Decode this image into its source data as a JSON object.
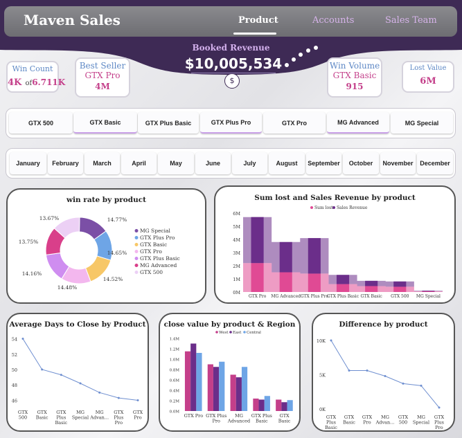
{
  "header": {
    "brand": "Maven Sales",
    "tabs": [
      {
        "label": "Product"
      },
      {
        "label": "Accounts"
      },
      {
        "label": "Sales Team"
      }
    ]
  },
  "booked_revenue": {
    "label": "Booked Revenue",
    "value": "$10,005,534",
    "icon": "dollar-icon",
    "icon_glyph": "$"
  },
  "kpis": {
    "win_count": {
      "title": "Win Count",
      "value": "4K",
      "of": "of",
      "total": "6.711K"
    },
    "best_seller": {
      "title": "Best Seller",
      "name": "GTX Pro",
      "value": "4M"
    },
    "win_volume": {
      "title": "Win Volume",
      "name": "GTX Basic",
      "value": "915"
    },
    "lost_value": {
      "title": "Lost Value",
      "value": "6M"
    }
  },
  "product_slicer": [
    "GTX 500",
    "GTX Basic",
    "GTX Plus Basic",
    "GTX Plus Pro",
    "GTX Pro",
    "MG Advanced",
    "MG Special"
  ],
  "month_slicer": [
    "January",
    "February",
    "March",
    "April",
    "May",
    "June",
    "July",
    "August",
    "September",
    "October",
    "November",
    "December"
  ],
  "colors": {
    "header": "#3e2a55",
    "accent_pink": "#c43f8a",
    "accent_blue": "#5e88c5",
    "line": "#6f8fd0"
  },
  "chart_data": [
    {
      "type": "pie",
      "title": "win rate by product",
      "slices": [
        {
          "name": "MG Special",
          "value": 14.77,
          "label": "14.77%",
          "color": "#7b4fa6"
        },
        {
          "name": "GTX Plus Pro",
          "value": 14.65,
          "label": "14.65%",
          "color": "#6ea5e6"
        },
        {
          "name": "GTX Basic",
          "value": 14.52,
          "label": "14.52%",
          "color": "#f7c767"
        },
        {
          "name": "GTX Pro",
          "value": 14.48,
          "label": "14.48%",
          "color": "#f3b7ee"
        },
        {
          "name": "GTX Plus Basic",
          "value": 14.16,
          "label": "14.16%",
          "color": "#cf8df0"
        },
        {
          "name": "MG Advanced",
          "value": 13.75,
          "label": "13.75%",
          "color": "#d93f8a"
        },
        {
          "name": "GTX 500",
          "value": 13.67,
          "label": "13.67%",
          "color": "#ecd0f5"
        }
      ],
      "legend_position": "right"
    },
    {
      "type": "area",
      "title": "Sum lost and Sales Revenue by product",
      "categories": [
        "GTX Pro",
        "MG Advanced",
        "GTX Plus Pro",
        "GTX Plus Basic",
        "GTX Basic",
        "GTX 500",
        "MG Special"
      ],
      "series": [
        {
          "name": "Sum lost",
          "values": [
            2.2,
            1.5,
            1.4,
            0.6,
            0.45,
            0.4,
            0.05
          ],
          "color": "#e04a94"
        },
        {
          "name": "Sales Revenue",
          "values": [
            3.5,
            2.3,
            2.7,
            0.7,
            0.4,
            0.4,
            0.05
          ],
          "color": "#6b2e8a"
        }
      ],
      "yticks": [
        "0M",
        "1M",
        "2M",
        "3M",
        "4M",
        "5M",
        "6M"
      ],
      "ylim": [
        0,
        6
      ],
      "legend_position": "top-left"
    },
    {
      "type": "line",
      "title": "Average Days to Close by Product",
      "categories": [
        "GTX 500",
        "GTX Basic",
        "GTX Plus Basic",
        "MG Special",
        "MG Advan...",
        "GTX Plus Pro",
        "GTX Pro"
      ],
      "values": [
        54,
        50,
        49.3,
        48.2,
        47,
        46.3,
        46
      ],
      "yticks": [
        "46",
        "48",
        "50",
        "52",
        "54"
      ],
      "ylim": [
        45.5,
        54.5
      ]
    },
    {
      "type": "bar",
      "title": "close value by product & Region",
      "categories": [
        "GTX Pro",
        "GTX Plus Pro",
        "MG Advanced",
        "GTX Plus Basic",
        "GTX Basic"
      ],
      "series": [
        {
          "name": "West",
          "values": [
            1.15,
            0.9,
            0.7,
            0.24,
            0.22
          ],
          "color": "#c43f8a"
        },
        {
          "name": "East",
          "values": [
            1.3,
            0.85,
            0.65,
            0.22,
            0.17
          ],
          "color": "#6b2e8a"
        },
        {
          "name": "Central",
          "values": [
            1.12,
            0.95,
            0.85,
            0.29,
            0.21
          ],
          "color": "#6ea5e6"
        }
      ],
      "yticks": [
        "0.0M",
        "0.2M",
        "0.4M",
        "0.6M",
        "0.8M",
        "1.0M",
        "1.2M",
        "1.4M"
      ],
      "ylim": [
        0,
        1.4
      ],
      "legend_position": "top"
    },
    {
      "type": "line",
      "title": "Difference by product",
      "categories": [
        "GTX Plus Basic",
        "GTX Basic",
        "GTX Pro",
        "MG Advan...",
        "GTX 500",
        "MG Special",
        "GTX Plus Pro"
      ],
      "values": [
        10,
        5.6,
        5.6,
        4.8,
        3.7,
        3.4,
        0.2
      ],
      "yticks": [
        "0K",
        "5K",
        "10K"
      ],
      "ylim": [
        0,
        10
      ]
    }
  ]
}
